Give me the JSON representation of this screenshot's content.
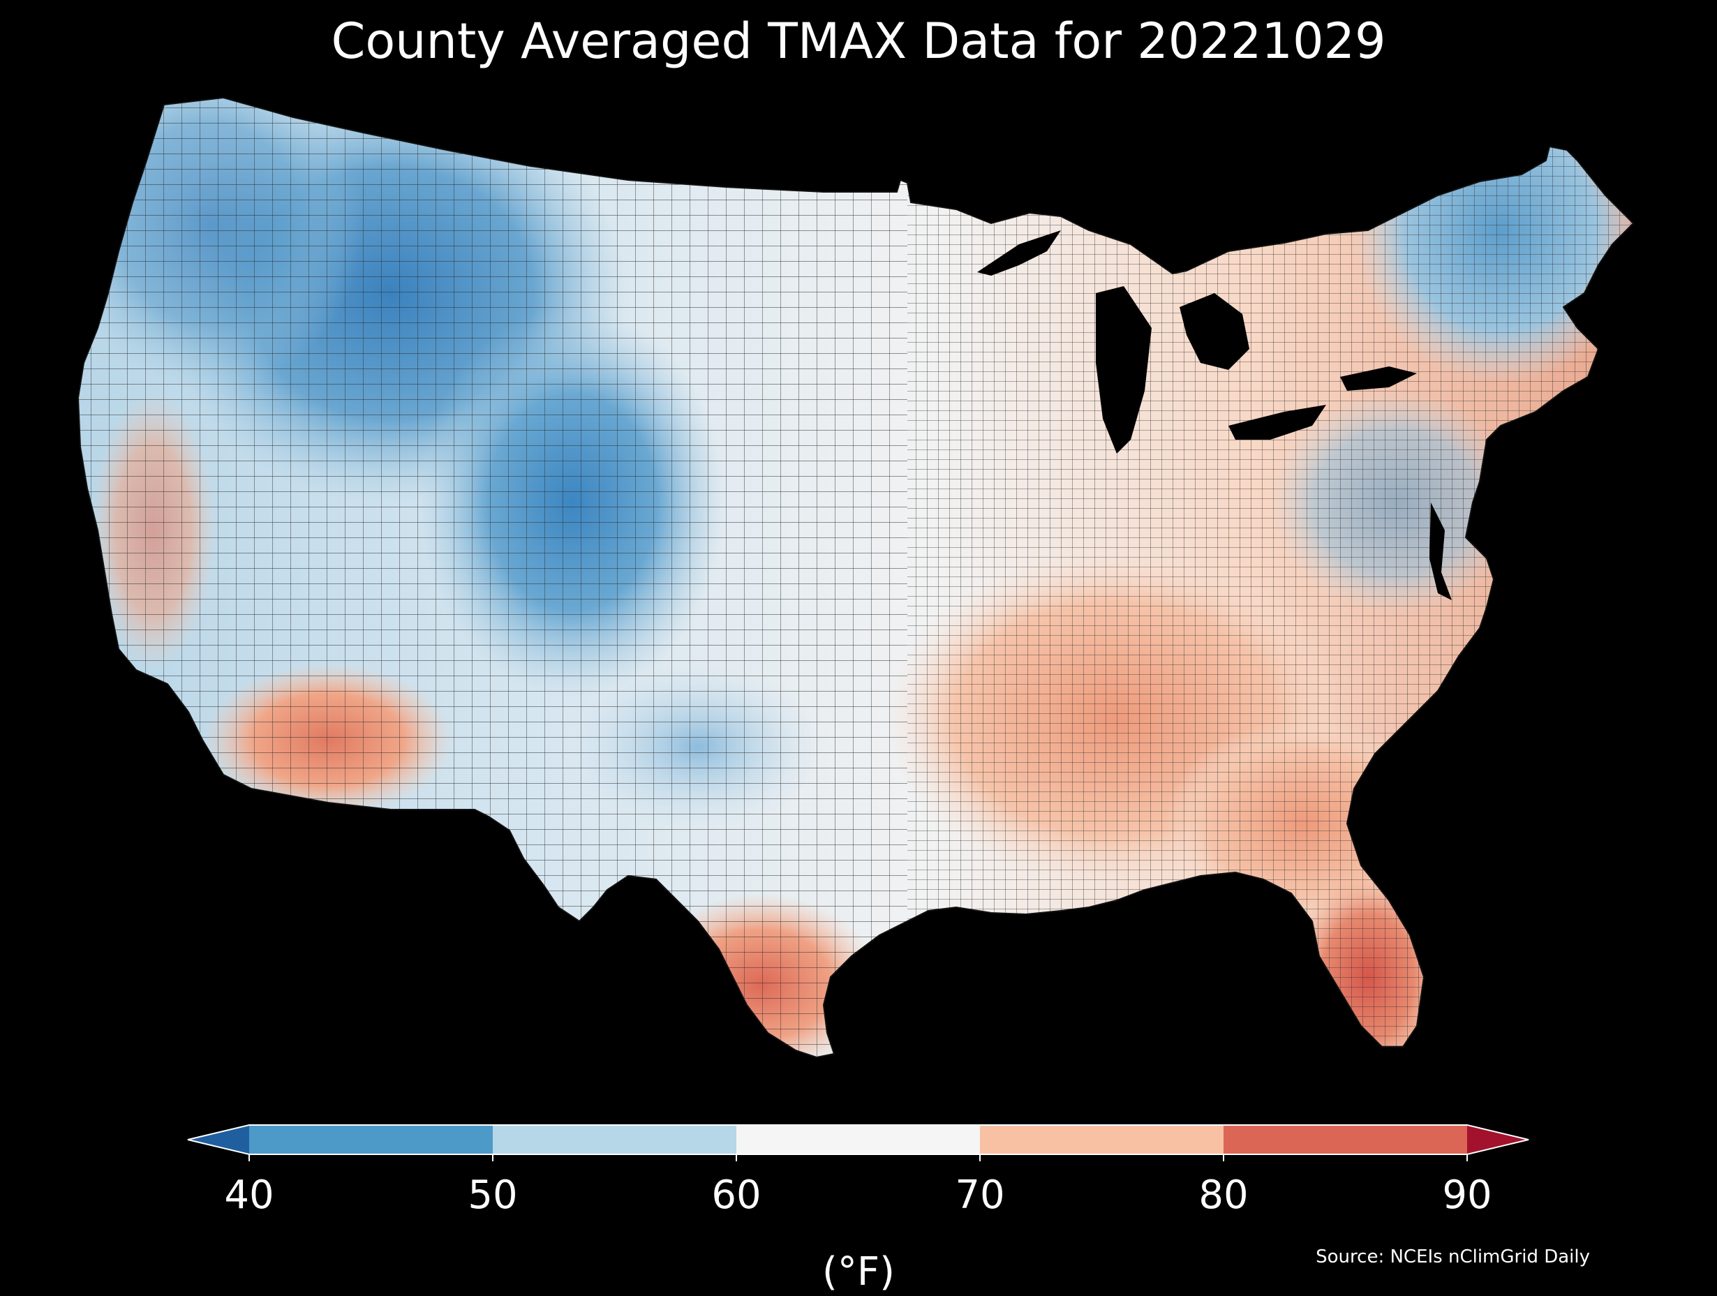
{
  "title": "County Averaged TMAX Data for 20221029",
  "colorbar": {
    "ticks": [
      "40",
      "50",
      "60",
      "70",
      "80",
      "90"
    ],
    "unit": "(°F)",
    "bins": [
      {
        "from": 40,
        "to": 50,
        "color": "#4d9ac8"
      },
      {
        "from": 50,
        "to": 60,
        "color": "#b6d7e8"
      },
      {
        "from": 60,
        "to": 70,
        "color": "#f5f5f5"
      },
      {
        "from": 70,
        "to": 80,
        "color": "#f8c1a4"
      },
      {
        "from": 80,
        "to": 90,
        "color": "#dc6656"
      }
    ],
    "under_color": "#1f5f9f",
    "over_color": "#a3122c"
  },
  "source": "Source: NCEIs nClimGrid Daily",
  "map": {
    "region": "Contiguous United States counties",
    "background_color": "#000000",
    "water_color": "#000000",
    "border_color": "#333333"
  }
}
